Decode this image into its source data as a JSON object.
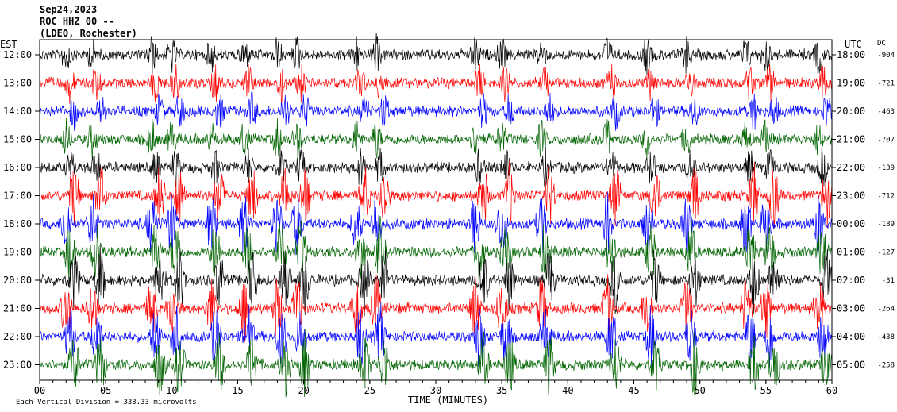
{
  "header": {
    "date": "Sep24,2023",
    "station": "ROC HHZ 00 --",
    "network": "(LDEO, Rochester)"
  },
  "left_tz": "EST",
  "right_tz": "UTC",
  "dc_header": "DC",
  "x_axis_label": "TIME (MINUTES)",
  "footer_note": "Each Vertical Division = 333.33 microvolts",
  "colors": {
    "trace_cycle": [
      "#000000",
      "#ff0000",
      "#0000ff",
      "#006400"
    ],
    "frame": "#000000",
    "background": "#ffffff"
  },
  "chart_data": {
    "type": "line",
    "title": "Sep24,2023 ROC HHZ 00 -- (LDEO, Rochester)",
    "xlabel": "TIME (MINUTES)",
    "ylabel": "",
    "xlim": [
      0,
      60
    ],
    "x_ticks": [
      "00",
      "05",
      "10",
      "15",
      "20",
      "25",
      "30",
      "35",
      "40",
      "45",
      "50",
      "55",
      "60"
    ],
    "grid": false,
    "series": [
      {
        "left_label": "12:00",
        "right_label": "18:00",
        "dc": "-904"
      },
      {
        "left_label": "13:00",
        "right_label": "19:00",
        "dc": "-721"
      },
      {
        "left_label": "14:00",
        "right_label": "20:00",
        "dc": "-463"
      },
      {
        "left_label": "15:00",
        "right_label": "21:00",
        "dc": "-707"
      },
      {
        "left_label": "16:00",
        "right_label": "22:00",
        "dc": "-139"
      },
      {
        "left_label": "17:00",
        "right_label": "23:00",
        "dc": "-712"
      },
      {
        "left_label": "18:00",
        "right_label": "00:00",
        "dc": "-189"
      },
      {
        "left_label": "19:00",
        "right_label": "01:00",
        "dc": "-127"
      },
      {
        "left_label": "20:00",
        "right_label": "02:00",
        "dc": "-31"
      },
      {
        "left_label": "21:00",
        "right_label": "03:00",
        "dc": "-264"
      },
      {
        "left_label": "22:00",
        "right_label": "04:00",
        "dc": "-438"
      },
      {
        "left_label": "23:00",
        "right_label": "05:00",
        "dc": "-258"
      }
    ]
  }
}
